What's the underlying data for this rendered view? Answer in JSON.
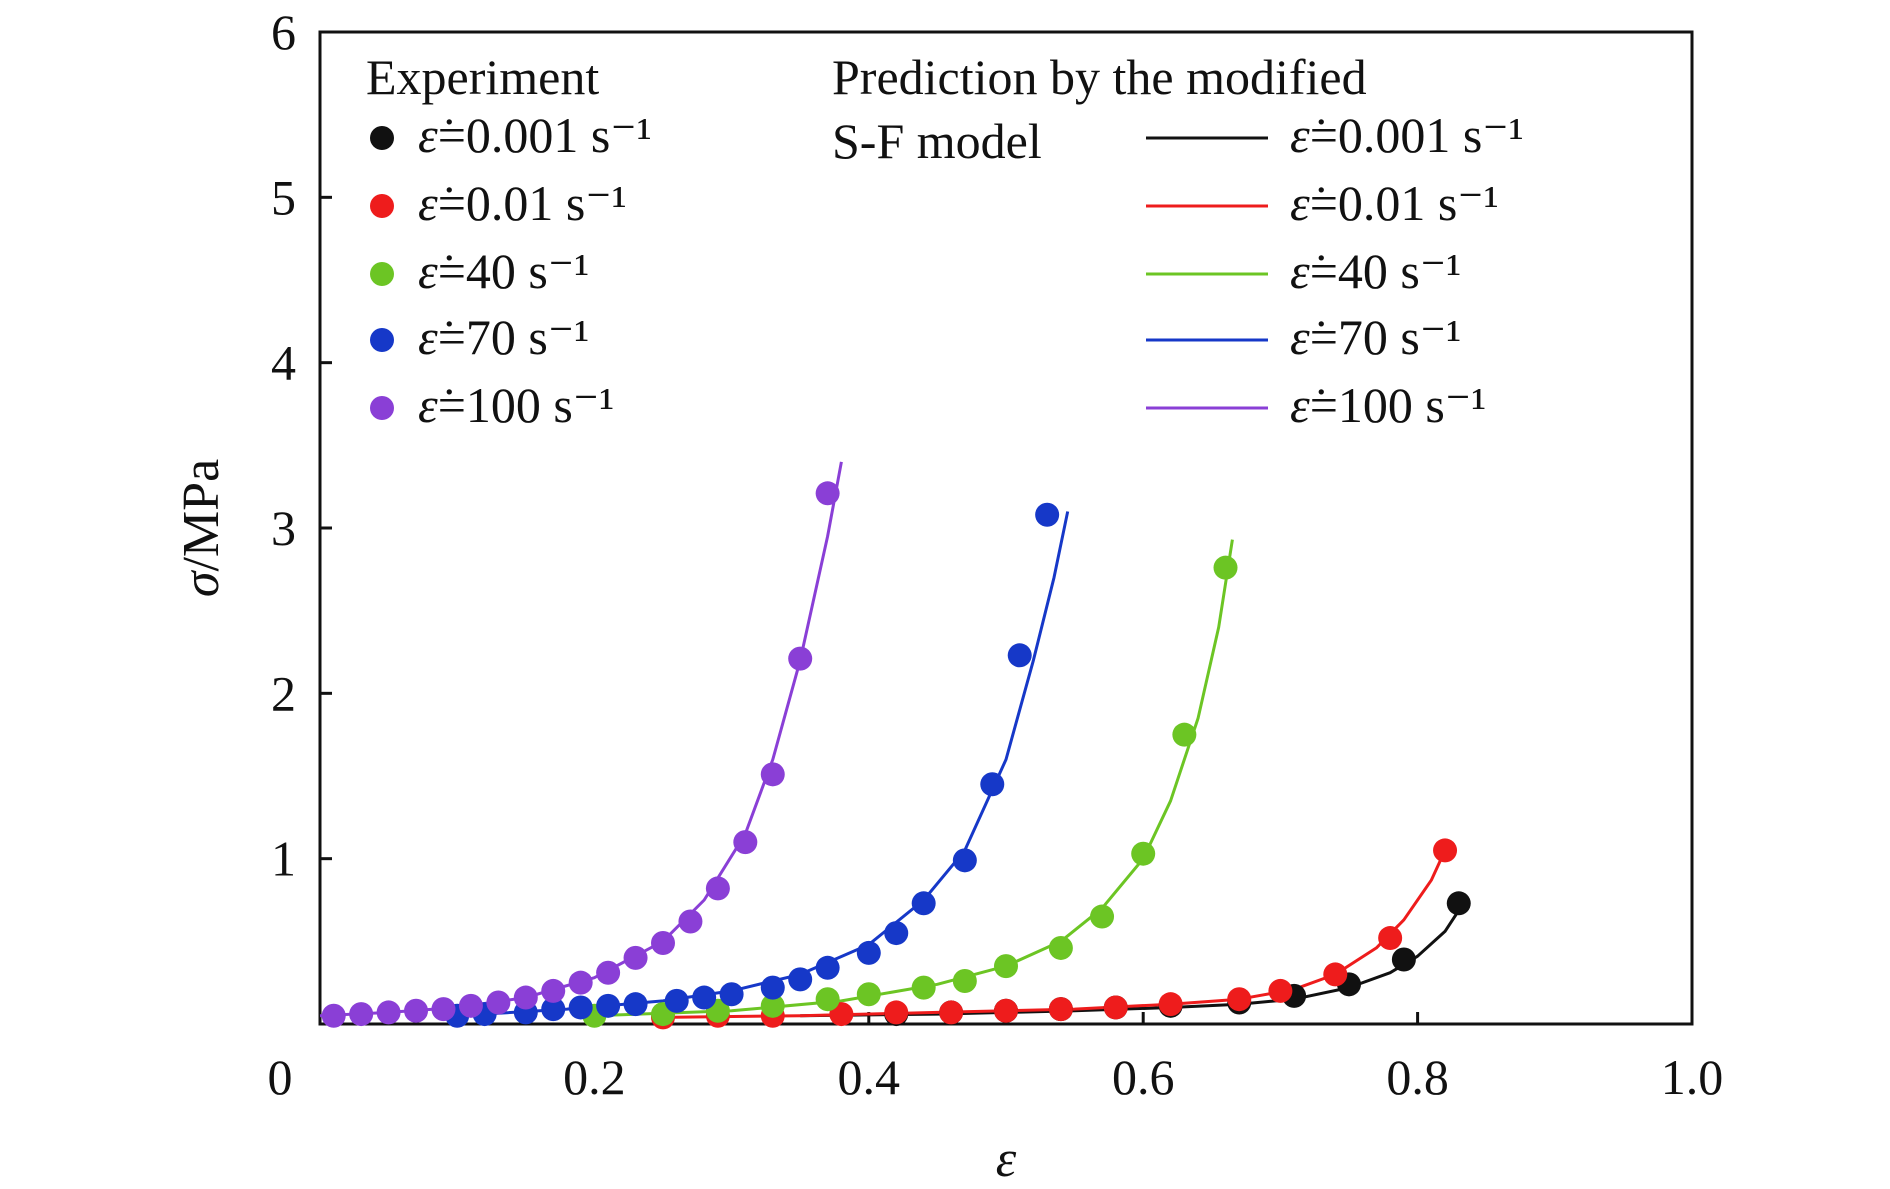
{
  "chart_data": {
    "type": "line+scatter",
    "xlabel": "ε",
    "ylabel_symbol": "σ",
    "ylabel_unit": "/MPa",
    "xlim": [
      0,
      1.0
    ],
    "ylim": [
      0,
      6
    ],
    "xticks": [
      0,
      0.2,
      0.4,
      0.6,
      0.8,
      1.0
    ],
    "xtick_labels": [
      "0",
      "0.2",
      "0.4",
      "0.6",
      "0.8",
      "1.0"
    ],
    "yticks": [
      1,
      2,
      3,
      4,
      5,
      6
    ],
    "ytick_labels": [
      "1",
      "2",
      "3",
      "4",
      "5",
      "6"
    ],
    "grid": false,
    "legend": {
      "experiment_title": "Experiment",
      "prediction_title_line1": "Prediction by the modified",
      "prediction_title_line2": "S-F model",
      "rate_symbol": "ε̇",
      "labels": [
        "=0.001 s⁻¹",
        "=0.01 s⁻¹",
        "=40 s⁻¹",
        "=70 s⁻¹",
        "=100 s⁻¹"
      ]
    },
    "series": [
      {
        "color": "#111111",
        "experiment": {
          "x": [
            0.42,
            0.46,
            0.5,
            0.54,
            0.58,
            0.62,
            0.67,
            0.71,
            0.75,
            0.79,
            0.83
          ],
          "y": [
            0.06,
            0.07,
            0.08,
            0.09,
            0.1,
            0.11,
            0.13,
            0.17,
            0.24,
            0.39,
            0.73
          ]
        },
        "prediction": {
          "x": [
            0.35,
            0.45,
            0.55,
            0.62,
            0.67,
            0.71,
            0.75,
            0.78,
            0.8,
            0.82,
            0.835
          ],
          "y": [
            0.05,
            0.06,
            0.08,
            0.1,
            0.12,
            0.15,
            0.22,
            0.31,
            0.41,
            0.56,
            0.75
          ]
        }
      },
      {
        "color": "#ee1c1c",
        "experiment": {
          "x": [
            0.25,
            0.29,
            0.33,
            0.38,
            0.42,
            0.46,
            0.5,
            0.54,
            0.58,
            0.62,
            0.67,
            0.7,
            0.74,
            0.78,
            0.82
          ],
          "y": [
            0.04,
            0.05,
            0.05,
            0.06,
            0.07,
            0.07,
            0.08,
            0.09,
            0.1,
            0.12,
            0.15,
            0.2,
            0.3,
            0.52,
            1.05
          ]
        },
        "prediction": {
          "x": [
            0.25,
            0.35,
            0.45,
            0.55,
            0.62,
            0.67,
            0.71,
            0.74,
            0.77,
            0.79,
            0.81,
            0.82
          ],
          "y": [
            0.04,
            0.05,
            0.07,
            0.09,
            0.12,
            0.15,
            0.21,
            0.3,
            0.46,
            0.63,
            0.87,
            1.05
          ]
        }
      },
      {
        "color": "#6cc524",
        "experiment": {
          "x": [
            0.2,
            0.25,
            0.29,
            0.33,
            0.37,
            0.4,
            0.44,
            0.47,
            0.5,
            0.54,
            0.57,
            0.6,
            0.63,
            0.66
          ],
          "y": [
            0.05,
            0.06,
            0.08,
            0.11,
            0.15,
            0.18,
            0.22,
            0.26,
            0.35,
            0.46,
            0.65,
            1.03,
            1.75,
            2.76
          ]
        },
        "prediction": {
          "x": [
            0.2,
            0.3,
            0.38,
            0.45,
            0.5,
            0.54,
            0.57,
            0.6,
            0.62,
            0.64,
            0.655,
            0.665
          ],
          "y": [
            0.05,
            0.08,
            0.14,
            0.24,
            0.35,
            0.5,
            0.7,
            1.0,
            1.35,
            1.85,
            2.4,
            2.93
          ]
        }
      },
      {
        "color": "#1638c8",
        "experiment": {
          "x": [
            0.1,
            0.12,
            0.15,
            0.17,
            0.19,
            0.21,
            0.23,
            0.26,
            0.28,
            0.3,
            0.33,
            0.35,
            0.37,
            0.4,
            0.42,
            0.44,
            0.47,
            0.49,
            0.51,
            0.53
          ],
          "y": [
            0.05,
            0.06,
            0.07,
            0.09,
            0.1,
            0.11,
            0.12,
            0.14,
            0.16,
            0.18,
            0.22,
            0.27,
            0.34,
            0.43,
            0.55,
            0.73,
            0.99,
            1.45,
            2.23,
            3.08
          ]
        },
        "prediction": {
          "x": [
            0.1,
            0.18,
            0.25,
            0.3,
            0.35,
            0.4,
            0.44,
            0.47,
            0.5,
            0.52,
            0.535,
            0.545
          ],
          "y": [
            0.05,
            0.09,
            0.14,
            0.2,
            0.3,
            0.48,
            0.75,
            1.05,
            1.6,
            2.2,
            2.7,
            3.1
          ]
        }
      },
      {
        "color": "#8a3fd6",
        "experiment": {
          "x": [
            0.01,
            0.03,
            0.05,
            0.07,
            0.09,
            0.11,
            0.13,
            0.15,
            0.17,
            0.19,
            0.21,
            0.23,
            0.25,
            0.27,
            0.29,
            0.31,
            0.33,
            0.35,
            0.37
          ],
          "y": [
            0.05,
            0.06,
            0.07,
            0.08,
            0.09,
            0.11,
            0.13,
            0.16,
            0.2,
            0.25,
            0.31,
            0.4,
            0.49,
            0.62,
            0.82,
            1.1,
            1.51,
            2.21,
            3.21
          ]
        },
        "prediction": {
          "x": [
            0.0,
            0.05,
            0.1,
            0.15,
            0.2,
            0.25,
            0.28,
            0.31,
            0.33,
            0.35,
            0.37,
            0.38
          ],
          "y": [
            0.05,
            0.07,
            0.1,
            0.16,
            0.28,
            0.5,
            0.75,
            1.15,
            1.6,
            2.2,
            2.95,
            3.4
          ]
        }
      }
    ]
  }
}
